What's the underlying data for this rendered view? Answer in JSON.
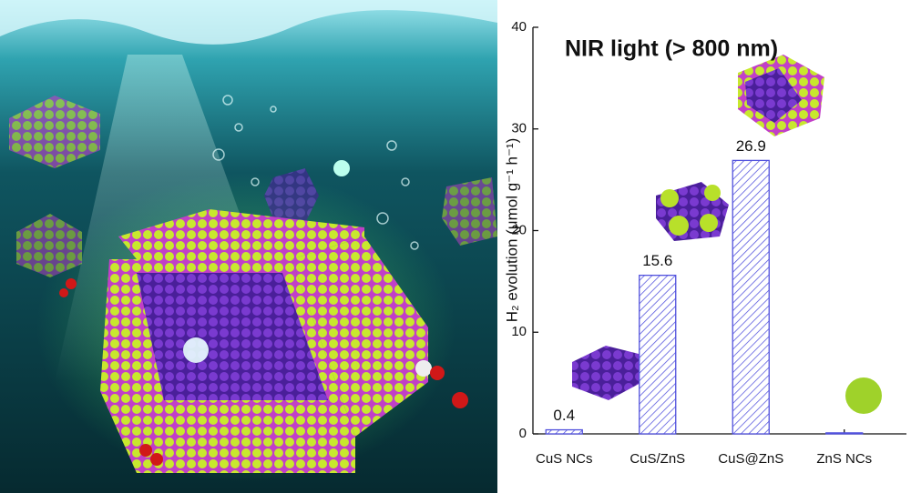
{
  "chart_data": {
    "type": "bar",
    "title": "NIR light (> 800 nm)",
    "y_label": "H₂ evolution (μmol g⁻¹ h⁻¹)",
    "categories": [
      "CuS NCs",
      "CuS/ZnS",
      "CuS@ZnS",
      "ZnS NCs"
    ],
    "values": [
      0.4,
      15.6,
      26.9,
      0.1
    ],
    "value_labels": [
      "0.4",
      "15.6",
      "26.9",
      null
    ],
    "color": "#5050dd",
    "ylim": [
      0,
      40
    ],
    "yticks": [
      0,
      10,
      20,
      30,
      40
    ],
    "grid": false
  }
}
